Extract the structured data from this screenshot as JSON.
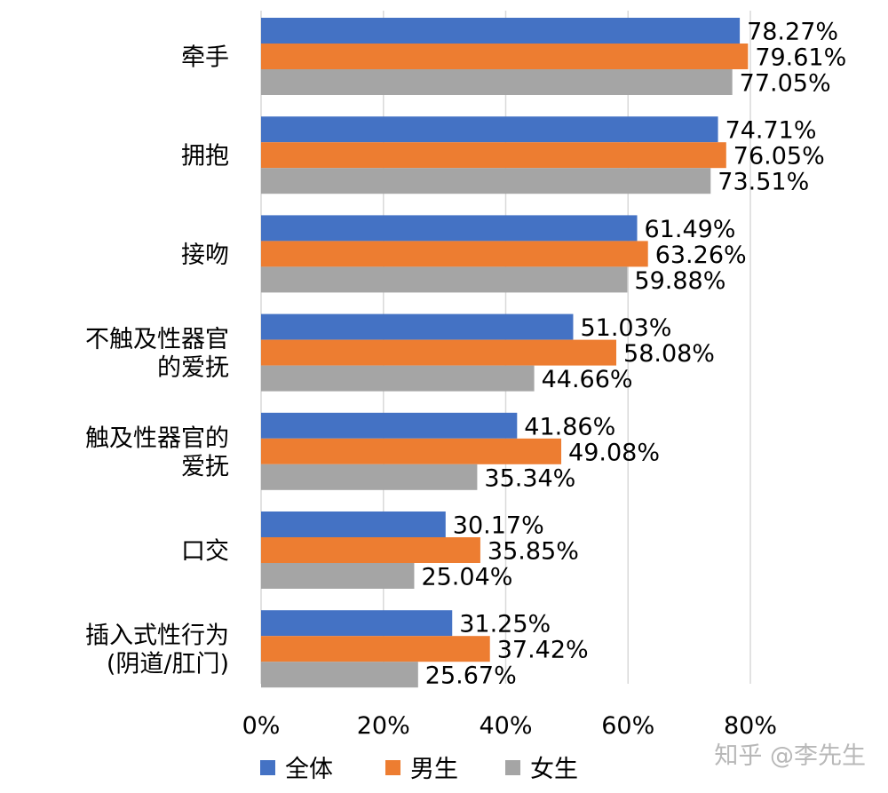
{
  "chart_data": {
    "type": "bar",
    "orientation": "horizontal",
    "categories": [
      [
        "牵手"
      ],
      [
        "拥抱"
      ],
      [
        "接吻"
      ],
      [
        "不触及性器官",
        "的爱抚"
      ],
      [
        "触及性器官的",
        "爱抚"
      ],
      [
        "口交"
      ],
      [
        "插入式性行为",
        "(阴道/肛门)"
      ]
    ],
    "series": [
      {
        "name": "全体",
        "color": "#4472C4",
        "values": [
          78.27,
          74.71,
          61.49,
          51.03,
          41.86,
          30.17,
          31.25
        ],
        "labels": [
          "78.27%",
          "74.71%",
          "61.49%",
          "51.03%",
          "41.86%",
          "30.17%",
          "31.25%"
        ]
      },
      {
        "name": "男生",
        "color": "#ED7D31",
        "values": [
          79.61,
          76.05,
          63.26,
          58.08,
          49.08,
          35.85,
          37.42
        ],
        "labels": [
          "79.61%",
          "76.05%",
          "63.26%",
          "58.08%",
          "49.08%",
          "35.85%",
          "37.42%"
        ]
      },
      {
        "name": "女生",
        "color": "#A5A5A5",
        "values": [
          77.05,
          73.51,
          59.88,
          44.66,
          35.34,
          25.04,
          25.67
        ],
        "labels": [
          "77.05%",
          "73.51%",
          "59.88%",
          "44.66%",
          "35.34%",
          "25.04%",
          "25.67%"
        ]
      }
    ],
    "x_ticks": [
      "0%",
      "20%",
      "40%",
      "60%",
      "80%"
    ],
    "xlim": [
      0,
      80
    ],
    "grid": "vertical",
    "legend_position": "bottom"
  },
  "watermark": "知乎 @李先生"
}
